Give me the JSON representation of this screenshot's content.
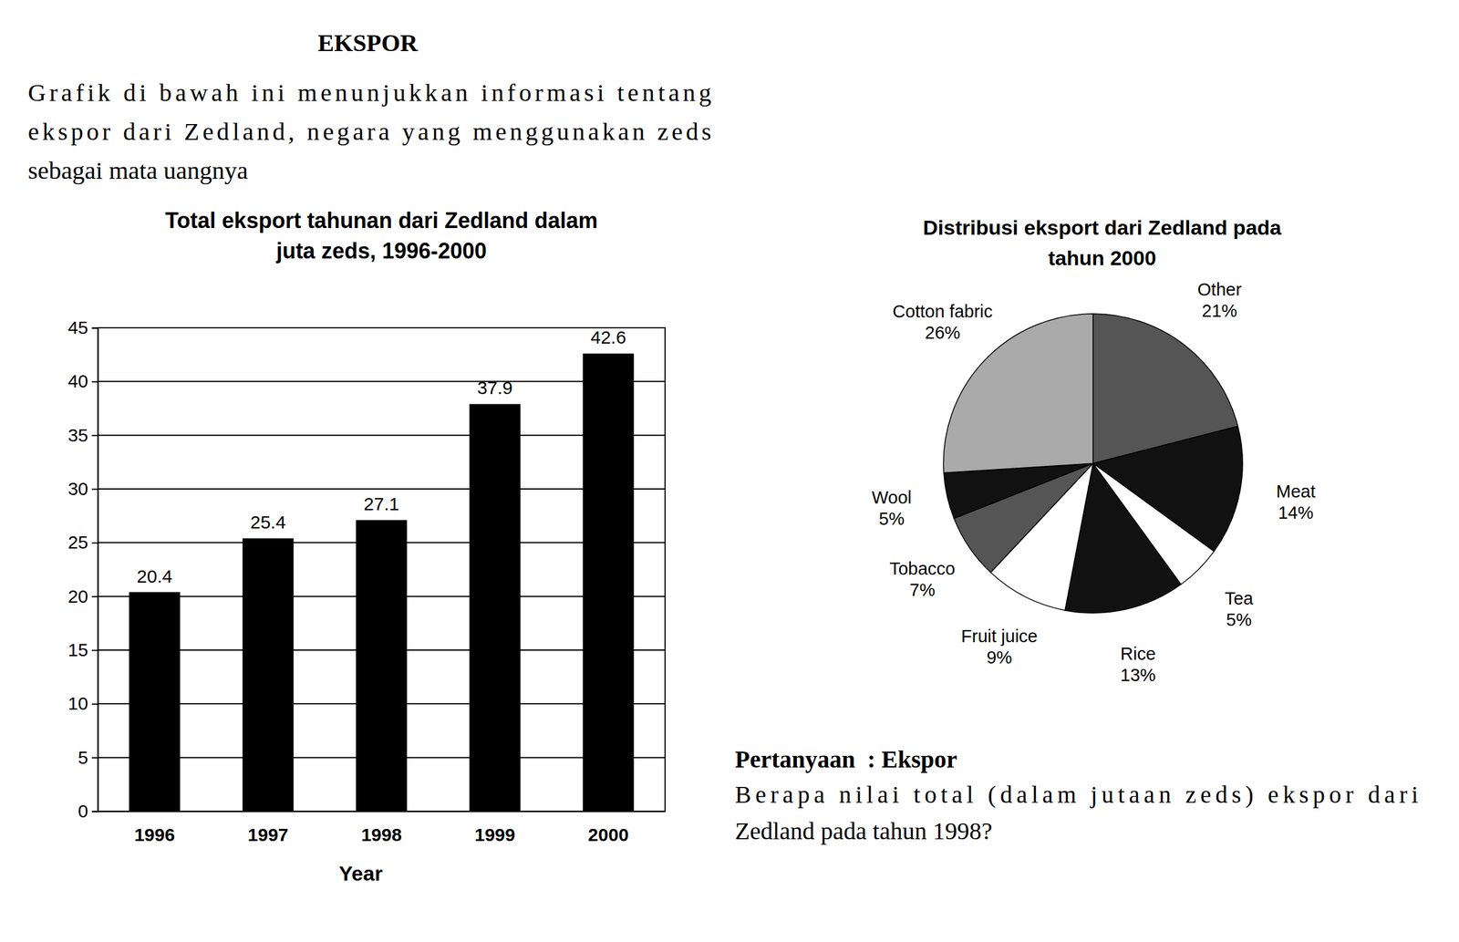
{
  "header": {
    "title": "EKSPOR",
    "intro": [
      "Grafik di bawah ini menunjukkan informasi tentang",
      "ekspor dari Zedland, negara yang menggunakan zeds",
      "sebagai mata uangnya"
    ]
  },
  "chart_data": [
    {
      "type": "bar",
      "title": "Total eksport tahunan dari Zedland dalam\njuta zeds, 1996-2000",
      "x_label": "Year",
      "categories": [
        "1996",
        "1997",
        "1998",
        "1999",
        "2000"
      ],
      "values": [
        20.4,
        25.4,
        27.1,
        37.9,
        42.6
      ],
      "color": "#000000",
      "ylim": [
        0,
        45
      ],
      "yticks": [
        0,
        5,
        10,
        15,
        20,
        25,
        30,
        35,
        40,
        45
      ],
      "grid": true,
      "data_labels": true
    },
    {
      "type": "pie",
      "title": "Distribusi eksport dari Zedland pada\ntahun 2000",
      "categories": [
        "Other",
        "Meat",
        "Tea",
        "Rice",
        "Fruit juice",
        "Tobacco",
        "Wool",
        "Cotton fabric"
      ],
      "values": [
        21,
        14,
        5,
        13,
        9,
        7,
        5,
        26
      ],
      "value_labels": [
        "21%",
        "14%",
        "5%",
        "13%",
        "9%",
        "7%",
        "5%",
        "26%"
      ],
      "colors": [
        "#555555",
        "#111111",
        "#ffffff",
        "#111111",
        "#ffffff",
        "#555555",
        "#111111",
        "#aaaaaa"
      ],
      "data_labels": true
    }
  ],
  "question": {
    "heading": "Pertanyaan  : Ekspor",
    "text": [
      "Berapa nilai total (dalam jutaan zeds) ekspor dari",
      "Zedland pada tahun 1998?"
    ]
  }
}
